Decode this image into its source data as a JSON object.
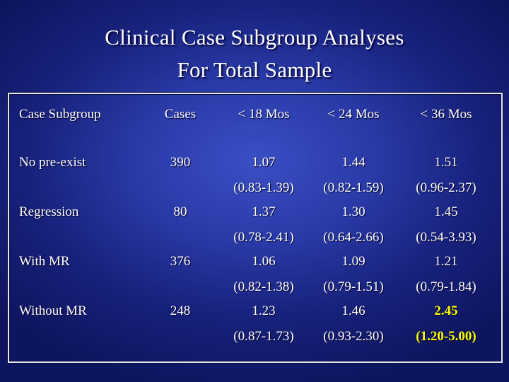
{
  "slide": {
    "title_line1": "Clinical Case Subgroup Analyses",
    "title_line2": "For Total  Sample"
  },
  "table": {
    "headers": [
      "Case Subgroup",
      "Cases",
      "< 18 Mos",
      "< 24 Mos",
      "< 36 Mos"
    ],
    "rows": [
      {
        "subgroup": "No pre-exist",
        "cases": "390",
        "m18": "1.07",
        "m18_ci": "(0.83-1.39)",
        "m24": "1.44",
        "m24_ci": "(0.82-1.59)",
        "m36": "1.51",
        "m36_ci": "(0.96-2.37)"
      },
      {
        "subgroup": "Regression",
        "cases": "80",
        "m18": "1.37",
        "m18_ci": "(0.78-2.41)",
        "m24": "1.30",
        "m24_ci": "(0.64-2.66)",
        "m36": "1.45",
        "m36_ci": "(0.54-3.93)"
      },
      {
        "subgroup": "With MR",
        "cases": "376",
        "m18": "1.06",
        "m18_ci": "(0.82-1.38)",
        "m24": "1.09",
        "m24_ci": "(0.79-1.51)",
        "m36": "1.21",
        "m36_ci": "(0.79-1.84)"
      },
      {
        "subgroup": "Without MR",
        "cases": "248",
        "m18": "1.23",
        "m18_ci": "(0.87-1.73)",
        "m24": "1.46",
        "m24_ci": "(0.93-2.30)",
        "m36": "2.45",
        "m36_ci": "(1.20-5.00)"
      }
    ],
    "highlight_color": "#ffff00"
  }
}
